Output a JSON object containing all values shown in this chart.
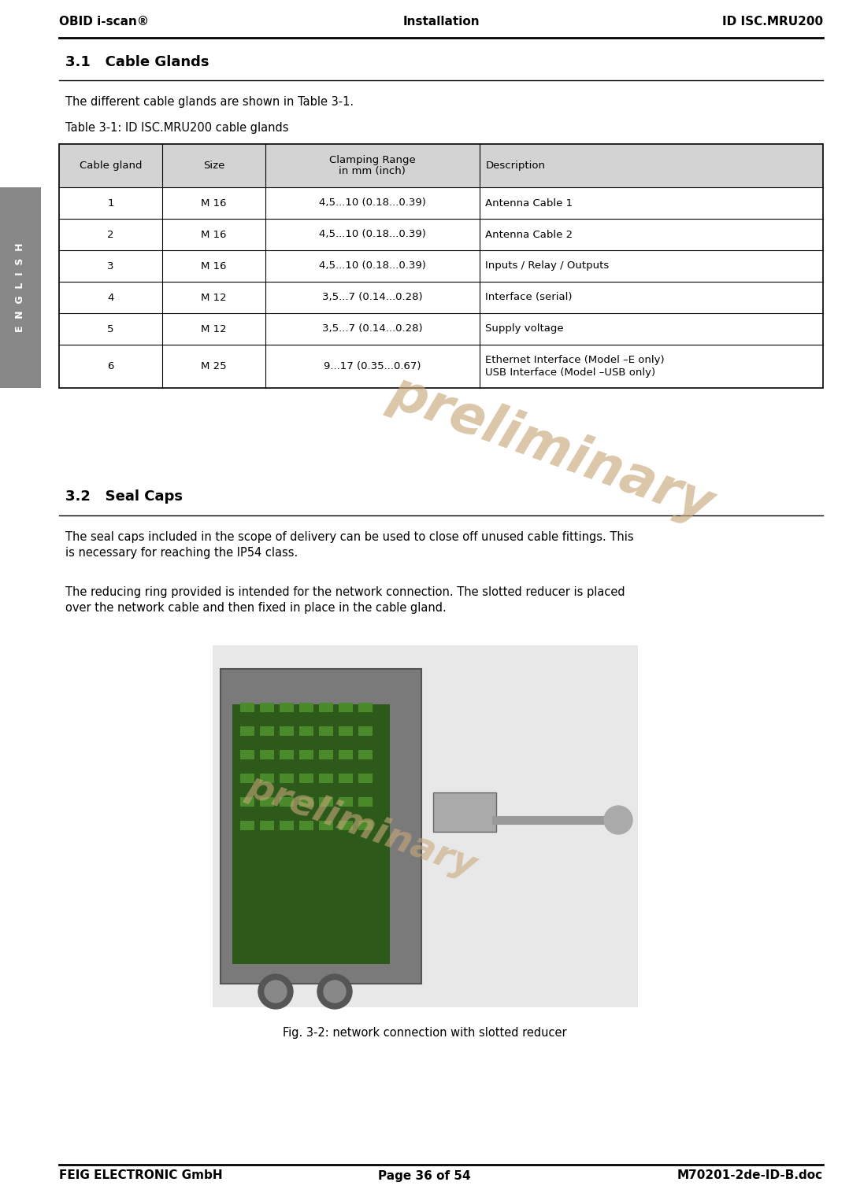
{
  "header_left": "OBID i-scan®",
  "header_center": "Installation",
  "header_right": "ID ISC.MRU200",
  "footer_left": "FEIG ELECTRONIC GmbH",
  "footer_center": "Page 36 of 54",
  "footer_right": "M70201-2de-ID-B.doc",
  "section_31_title": "3.1   Cable Glands",
  "section_31_para": "The different cable glands are shown in Table 3-1.",
  "table_caption": "Table 3-1: ID ISC.MRU200 cable glands",
  "table_headers": [
    "Cable gland",
    "Size",
    "Clamping Range\nin mm (inch)",
    "Description"
  ],
  "table_rows": [
    [
      "1",
      "M 16",
      "4,5...10 (0.18...0.39)",
      "Antenna Cable 1"
    ],
    [
      "2",
      "M 16",
      "4,5...10 (0.18...0.39)",
      "Antenna Cable 2"
    ],
    [
      "3",
      "M 16",
      "4,5...10 (0.18...0.39)",
      "Inputs / Relay / Outputs"
    ],
    [
      "4",
      "M 12",
      "3,5...7 (0.14...0.28)",
      "Interface (serial)"
    ],
    [
      "5",
      "M 12",
      "3,5...7 (0.14...0.28)",
      "Supply voltage"
    ],
    [
      "6",
      "M 25",
      "9...17 (0.35...0.67)",
      "Ethernet Interface (Model –E only)\nUSB Interface (Model –USB only)"
    ]
  ],
  "section_32_title": "3.2   Seal Caps",
  "section_32_para1": "The seal caps included in the scope of delivery can be used to close off unused cable fittings. This\nis necessary for reaching the IP54 class.",
  "section_32_para2": "The reducing ring provided is intended for the network connection. The slotted reducer is placed\nover the network cable and then fixed in place in the cable gland.",
  "fig_caption": "Fig. 3-2: network connection with slotted reducer",
  "header_line_color": "#000000",
  "table_header_bg": "#d3d3d3",
  "sidebar_bg": "#808080",
  "preliminary_color": "#c8a87a",
  "bg_color": "#ffffff"
}
